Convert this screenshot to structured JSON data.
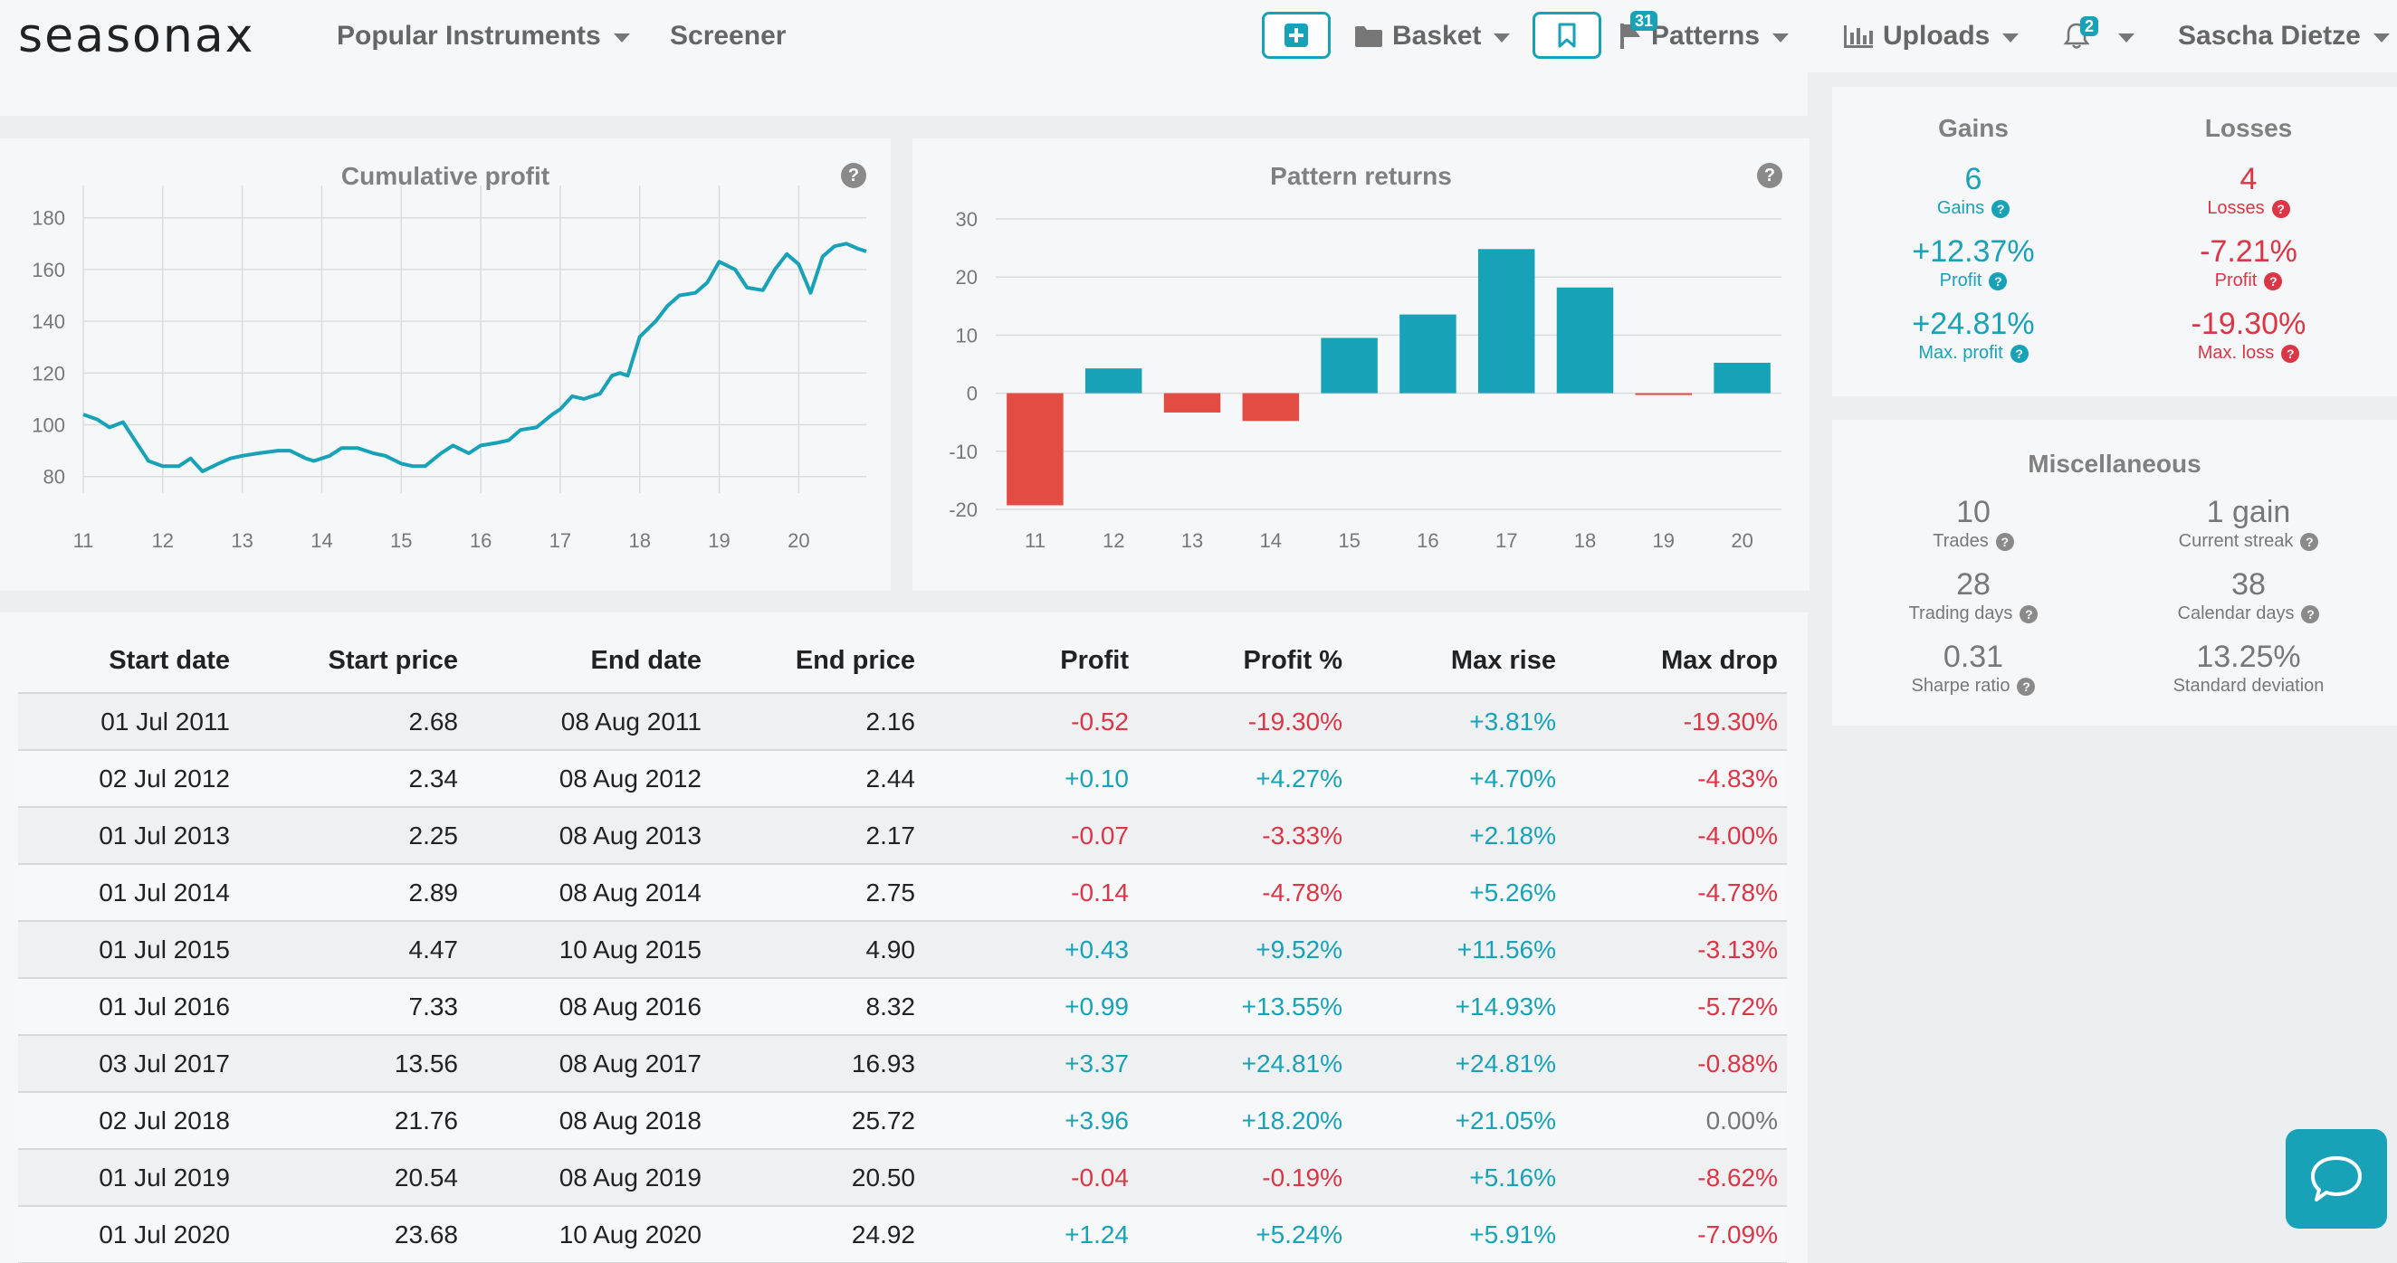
{
  "header": {
    "logo": "seasonax",
    "nav_popular": "Popular Instruments",
    "nav_screener": "Screener",
    "nav_basket": "Basket",
    "patterns_badge": "31",
    "nav_patterns": "Patterns",
    "nav_uploads": "Uploads",
    "notifications_badge": "2",
    "user_name": "Sascha Dietze"
  },
  "cumulative": {
    "title": "Cumulative profit",
    "help": "?"
  },
  "pattern_returns": {
    "title": "Pattern returns",
    "help": "?"
  },
  "gains_losses": {
    "gains_header": "Gains",
    "losses_header": "Losses",
    "gains_count": "6",
    "gains_count_label": "Gains",
    "gains_profit": "+12.37%",
    "gains_profit_label": "Profit",
    "gains_max": "+24.81%",
    "gains_max_label": "Max. profit",
    "losses_count": "4",
    "losses_count_label": "Losses",
    "losses_profit": "-7.21%",
    "losses_profit_label": "Profit",
    "losses_max": "-19.30%",
    "losses_max_label": "Max. loss"
  },
  "misc": {
    "title": "Miscellaneous",
    "trades": "10",
    "trades_label": "Trades",
    "streak": "1 gain",
    "streak_label": "Current streak",
    "trading_days": "28",
    "trading_days_label": "Trading days",
    "calendar_days": "38",
    "calendar_days_label": "Calendar days",
    "sharpe": "0.31",
    "sharpe_label": "Sharpe ratio",
    "stddev": "13.25%",
    "stddev_label": "Standard deviation"
  },
  "table": {
    "headers": [
      "Start date",
      "Start price",
      "End date",
      "End price",
      "Profit",
      "Profit %",
      "Max rise",
      "Max drop"
    ],
    "rows": [
      [
        "01 Jul 2011",
        "2.68",
        "08 Aug 2011",
        "2.16",
        "-0.52",
        "-19.30%",
        "+3.81%",
        "-19.30%"
      ],
      [
        "02 Jul 2012",
        "2.34",
        "08 Aug 2012",
        "2.44",
        "+0.10",
        "+4.27%",
        "+4.70%",
        "-4.83%"
      ],
      [
        "01 Jul 2013",
        "2.25",
        "08 Aug 2013",
        "2.17",
        "-0.07",
        "-3.33%",
        "+2.18%",
        "-4.00%"
      ],
      [
        "01 Jul 2014",
        "2.89",
        "08 Aug 2014",
        "2.75",
        "-0.14",
        "-4.78%",
        "+5.26%",
        "-4.78%"
      ],
      [
        "01 Jul 2015",
        "4.47",
        "10 Aug 2015",
        "4.90",
        "+0.43",
        "+9.52%",
        "+11.56%",
        "-3.13%"
      ],
      [
        "01 Jul 2016",
        "7.33",
        "08 Aug 2016",
        "8.32",
        "+0.99",
        "+13.55%",
        "+14.93%",
        "-5.72%"
      ],
      [
        "03 Jul 2017",
        "13.56",
        "08 Aug 2017",
        "16.93",
        "+3.37",
        "+24.81%",
        "+24.81%",
        "-0.88%"
      ],
      [
        "02 Jul 2018",
        "21.76",
        "08 Aug 2018",
        "25.72",
        "+3.96",
        "+18.20%",
        "+21.05%",
        "0.00%"
      ],
      [
        "01 Jul 2019",
        "20.54",
        "08 Aug 2019",
        "20.50",
        "-0.04",
        "-0.19%",
        "+5.16%",
        "-8.62%"
      ],
      [
        "01 Jul 2020",
        "23.68",
        "10 Aug 2020",
        "24.92",
        "+1.24",
        "+5.24%",
        "+5.91%",
        "-7.09%"
      ]
    ]
  },
  "colors": {
    "teal": "#17a2b8",
    "red": "#dc3545",
    "grey": "#777777"
  },
  "chart_data": [
    {
      "type": "line",
      "title": "Cumulative profit",
      "x_ticks": [
        "11",
        "12",
        "13",
        "14",
        "15",
        "16",
        "17",
        "18",
        "19",
        "20"
      ],
      "y_ticks": [
        80,
        100,
        120,
        140,
        160,
        180
      ],
      "xlim": [
        11,
        20.85
      ],
      "ylim": [
        75,
        182
      ],
      "grid": true,
      "series": [
        {
          "x": [
            11.0,
            11.18,
            11.33,
            11.5,
            11.82,
            12.0,
            12.2,
            12.35,
            12.5,
            12.7,
            12.85,
            13.0,
            13.2,
            13.45,
            13.6,
            13.8,
            13.9,
            14.1,
            14.25,
            14.45,
            14.65,
            14.8,
            15.0,
            15.15,
            15.3,
            15.5,
            15.65,
            15.85,
            16.0,
            16.2,
            16.35,
            16.5,
            16.7,
            16.9,
            17.0,
            17.15,
            17.3,
            17.5,
            17.65,
            17.75,
            17.85,
            18.0,
            18.2,
            18.35,
            18.5,
            18.7,
            18.85,
            19.0,
            19.2,
            19.35,
            19.55,
            19.7,
            19.85,
            20.0,
            20.15,
            20.3,
            20.45,
            20.6,
            20.75,
            20.85
          ],
          "y": [
            104,
            102,
            99,
            101,
            86,
            84,
            84,
            87,
            82,
            85,
            87,
            88,
            89,
            90,
            90,
            87,
            86,
            88,
            91,
            91,
            89,
            88,
            85,
            84,
            84,
            89,
            92,
            89,
            92,
            93,
            94,
            98,
            99,
            104,
            106,
            111,
            110,
            112,
            119,
            120,
            119,
            134,
            140,
            146,
            150,
            151,
            155,
            163,
            160,
            153,
            152,
            160,
            166,
            162,
            151,
            165,
            169,
            170,
            168,
            167
          ]
        }
      ]
    },
    {
      "type": "bar",
      "title": "Pattern returns",
      "categories": [
        "11",
        "12",
        "13",
        "14",
        "15",
        "16",
        "17",
        "18",
        "19",
        "20"
      ],
      "values": [
        -19.3,
        4.27,
        -3.33,
        -4.78,
        9.52,
        13.55,
        24.81,
        18.2,
        -0.19,
        5.24
      ],
      "y_ticks": [
        -20,
        -10,
        0,
        10,
        20,
        30
      ],
      "ylim": [
        -20,
        30
      ],
      "grid": true
    }
  ]
}
